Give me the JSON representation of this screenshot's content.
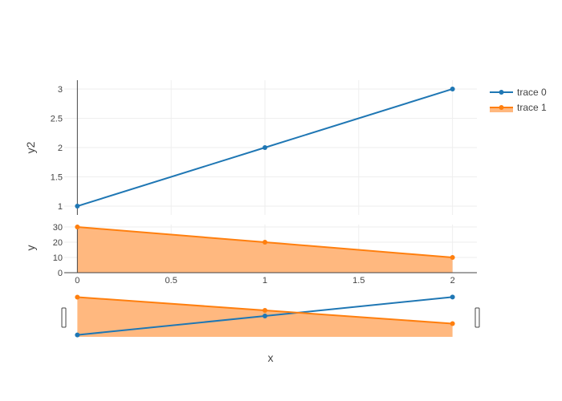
{
  "chart_data": {
    "type": "line",
    "x": [
      0,
      1,
      2
    ],
    "xlabel": "x",
    "xlim": [
      -0.07,
      2.13
    ],
    "xticks": [
      0,
      0.5,
      1,
      1.5,
      2
    ],
    "xtick_labels": [
      "0",
      "0.5",
      "1",
      "1.5",
      "2"
    ],
    "series": [
      {
        "name": "trace 0",
        "axis": "y2",
        "mode": "lines+markers",
        "color": "#1f77b4",
        "fill": "none",
        "values": [
          1,
          2,
          3
        ]
      },
      {
        "name": "trace 1",
        "axis": "y",
        "mode": "lines+markers",
        "color": "#ff7f0e",
        "fill": "tozeroy",
        "fill_color": "#ffb87f",
        "values": [
          30,
          20,
          10
        ]
      }
    ],
    "subplots": [
      {
        "axis": "y2",
        "ylabel": "y2",
        "ylim": [
          0.85,
          3.15
        ],
        "yticks": [
          1,
          1.5,
          2,
          2.5,
          3
        ],
        "ytick_labels": [
          "1",
          "1.5",
          "2",
          "2.5",
          "3"
        ]
      },
      {
        "axis": "y",
        "ylabel": "y",
        "ylim": [
          0,
          31.6
        ],
        "yticks": [
          0,
          10,
          20,
          30
        ],
        "ytick_labels": [
          "0",
          "10",
          "20",
          "30"
        ]
      }
    ],
    "grid": true,
    "legend_position": "top-right",
    "rangeslider": true
  }
}
